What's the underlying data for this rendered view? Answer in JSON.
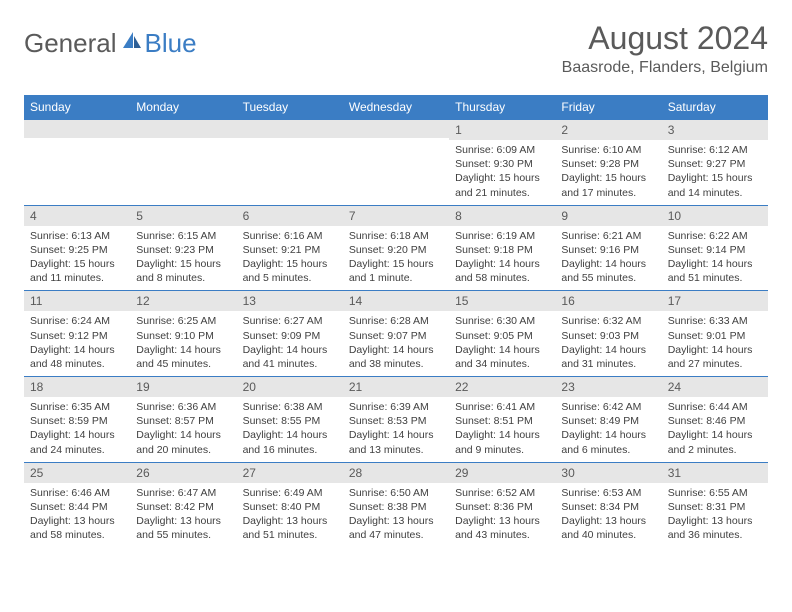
{
  "logo": {
    "general": "General",
    "blue": "Blue"
  },
  "title": "August 2024",
  "location": "Baasrode, Flanders, Belgium",
  "weekdays": [
    "Sunday",
    "Monday",
    "Tuesday",
    "Wednesday",
    "Thursday",
    "Friday",
    "Saturday"
  ],
  "colors": {
    "accent": "#3b7dc4",
    "header_text": "#ffffff",
    "daynum_bg": "#e6e6e6",
    "text": "#5a5a5a",
    "body_text": "#404040",
    "background": "#ffffff"
  },
  "weeks": [
    [
      null,
      null,
      null,
      null,
      {
        "n": "1",
        "sr": "6:09 AM",
        "ss": "9:30 PM",
        "dl": "15 hours and 21 minutes."
      },
      {
        "n": "2",
        "sr": "6:10 AM",
        "ss": "9:28 PM",
        "dl": "15 hours and 17 minutes."
      },
      {
        "n": "3",
        "sr": "6:12 AM",
        "ss": "9:27 PM",
        "dl": "15 hours and 14 minutes."
      }
    ],
    [
      {
        "n": "4",
        "sr": "6:13 AM",
        "ss": "9:25 PM",
        "dl": "15 hours and 11 minutes."
      },
      {
        "n": "5",
        "sr": "6:15 AM",
        "ss": "9:23 PM",
        "dl": "15 hours and 8 minutes."
      },
      {
        "n": "6",
        "sr": "6:16 AM",
        "ss": "9:21 PM",
        "dl": "15 hours and 5 minutes."
      },
      {
        "n": "7",
        "sr": "6:18 AM",
        "ss": "9:20 PM",
        "dl": "15 hours and 1 minute."
      },
      {
        "n": "8",
        "sr": "6:19 AM",
        "ss": "9:18 PM",
        "dl": "14 hours and 58 minutes."
      },
      {
        "n": "9",
        "sr": "6:21 AM",
        "ss": "9:16 PM",
        "dl": "14 hours and 55 minutes."
      },
      {
        "n": "10",
        "sr": "6:22 AM",
        "ss": "9:14 PM",
        "dl": "14 hours and 51 minutes."
      }
    ],
    [
      {
        "n": "11",
        "sr": "6:24 AM",
        "ss": "9:12 PM",
        "dl": "14 hours and 48 minutes."
      },
      {
        "n": "12",
        "sr": "6:25 AM",
        "ss": "9:10 PM",
        "dl": "14 hours and 45 minutes."
      },
      {
        "n": "13",
        "sr": "6:27 AM",
        "ss": "9:09 PM",
        "dl": "14 hours and 41 minutes."
      },
      {
        "n": "14",
        "sr": "6:28 AM",
        "ss": "9:07 PM",
        "dl": "14 hours and 38 minutes."
      },
      {
        "n": "15",
        "sr": "6:30 AM",
        "ss": "9:05 PM",
        "dl": "14 hours and 34 minutes."
      },
      {
        "n": "16",
        "sr": "6:32 AM",
        "ss": "9:03 PM",
        "dl": "14 hours and 31 minutes."
      },
      {
        "n": "17",
        "sr": "6:33 AM",
        "ss": "9:01 PM",
        "dl": "14 hours and 27 minutes."
      }
    ],
    [
      {
        "n": "18",
        "sr": "6:35 AM",
        "ss": "8:59 PM",
        "dl": "14 hours and 24 minutes."
      },
      {
        "n": "19",
        "sr": "6:36 AM",
        "ss": "8:57 PM",
        "dl": "14 hours and 20 minutes."
      },
      {
        "n": "20",
        "sr": "6:38 AM",
        "ss": "8:55 PM",
        "dl": "14 hours and 16 minutes."
      },
      {
        "n": "21",
        "sr": "6:39 AM",
        "ss": "8:53 PM",
        "dl": "14 hours and 13 minutes."
      },
      {
        "n": "22",
        "sr": "6:41 AM",
        "ss": "8:51 PM",
        "dl": "14 hours and 9 minutes."
      },
      {
        "n": "23",
        "sr": "6:42 AM",
        "ss": "8:49 PM",
        "dl": "14 hours and 6 minutes."
      },
      {
        "n": "24",
        "sr": "6:44 AM",
        "ss": "8:46 PM",
        "dl": "14 hours and 2 minutes."
      }
    ],
    [
      {
        "n": "25",
        "sr": "6:46 AM",
        "ss": "8:44 PM",
        "dl": "13 hours and 58 minutes."
      },
      {
        "n": "26",
        "sr": "6:47 AM",
        "ss": "8:42 PM",
        "dl": "13 hours and 55 minutes."
      },
      {
        "n": "27",
        "sr": "6:49 AM",
        "ss": "8:40 PM",
        "dl": "13 hours and 51 minutes."
      },
      {
        "n": "28",
        "sr": "6:50 AM",
        "ss": "8:38 PM",
        "dl": "13 hours and 47 minutes."
      },
      {
        "n": "29",
        "sr": "6:52 AM",
        "ss": "8:36 PM",
        "dl": "13 hours and 43 minutes."
      },
      {
        "n": "30",
        "sr": "6:53 AM",
        "ss": "8:34 PM",
        "dl": "13 hours and 40 minutes."
      },
      {
        "n": "31",
        "sr": "6:55 AM",
        "ss": "8:31 PM",
        "dl": "13 hours and 36 minutes."
      }
    ]
  ],
  "labels": {
    "sunrise": "Sunrise:",
    "sunset": "Sunset:",
    "daylight": "Daylight:"
  }
}
